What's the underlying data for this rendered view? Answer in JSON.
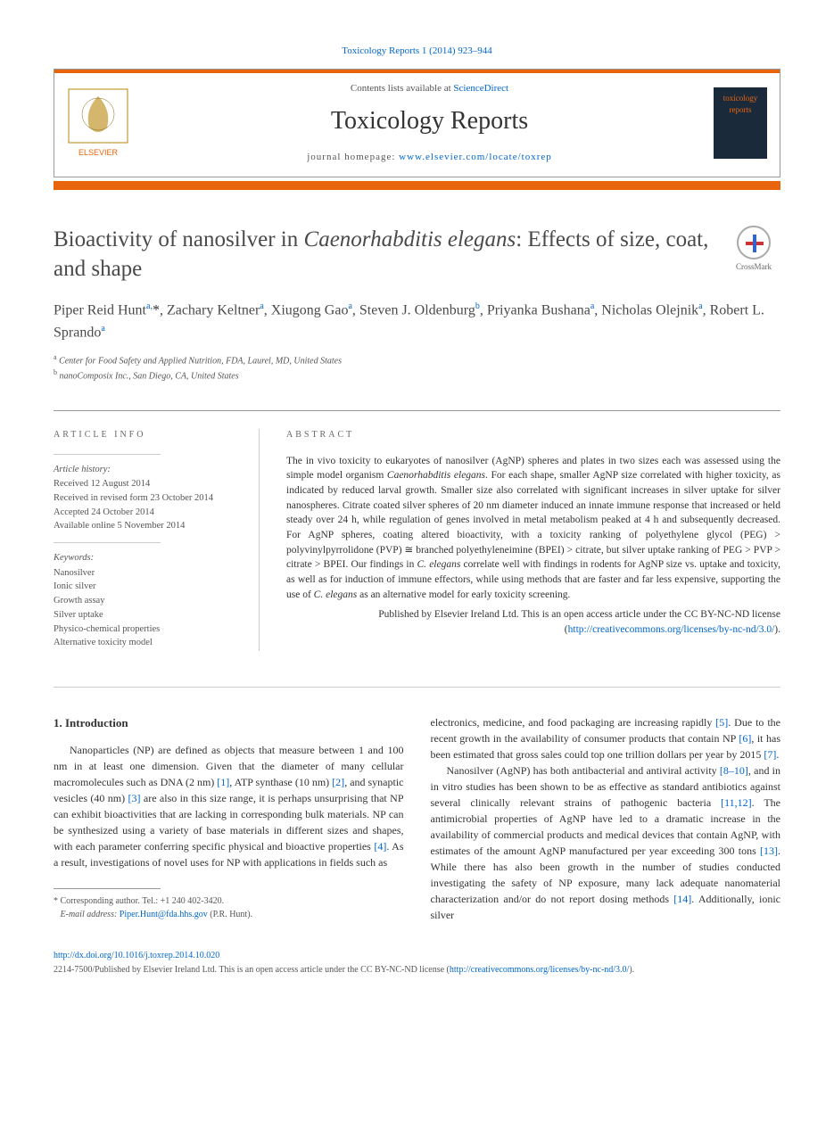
{
  "top_link": "Toxicology Reports 1 (2014) 923–944",
  "header": {
    "contents_prefix": "Contents lists available at ",
    "contents_link": "ScienceDirect",
    "journal": "Toxicology Reports",
    "homepage_prefix": "journal homepage: ",
    "homepage_link": "www.elsevier.com/locate/toxrep",
    "cover_text": "toxicology reports",
    "elsevier_label": "ELSEVIER"
  },
  "crossmark": "CrossMark",
  "title_pre": "Bioactivity of nanosilver in ",
  "title_italic": "Caenorhabditis elegans",
  "title_post": ": Effects of size, coat, and shape",
  "authors_html": "Piper Reid Hunt<sup>a,</sup><span class='star'>*</span>, Zachary Keltner<sup>a</sup>, Xiugong Gao<sup>a</sup>, Steven J. Oldenburg<sup>b</sup>, Priyanka Bushana<sup>a</sup>, Nicholas Olejnik<sup>a</sup>, Robert L. Sprando<sup>a</sup>",
  "affiliations": {
    "a": "Center for Food Safety and Applied Nutrition, FDA, Laurel, MD, United States",
    "b": "nanoComposix Inc., San Diego, CA, United States"
  },
  "info": {
    "label": "article info",
    "history_label": "Article history:",
    "received": "Received 12 August 2014",
    "revised": "Received in revised form 23 October 2014",
    "accepted": "Accepted 24 October 2014",
    "online": "Available online 5 November 2014",
    "keywords_label": "Keywords:",
    "keywords": [
      "Nanosilver",
      "Ionic silver",
      "Growth assay",
      "Silver uptake",
      "Physico-chemical properties",
      "Alternative toxicity model"
    ]
  },
  "abstract": {
    "label": "abstract",
    "text_parts": [
      "The in vivo toxicity to eukaryotes of nanosilver (AgNP) spheres and plates in two sizes each was assessed using the simple model organism ",
      "Caenorhabditis elegans",
      ". For each shape, smaller AgNP size correlated with higher toxicity, as indicated by reduced larval growth. Smaller size also correlated with significant increases in silver uptake for silver nanospheres. Citrate coated silver spheres of 20 nm diameter induced an innate immune response that increased or held steady over 24 h, while regulation of genes involved in metal metabolism peaked at 4 h and subsequently decreased. For AgNP spheres, coating altered bioactivity, with a toxicity ranking of polyethylene glycol (PEG) > polyvinylpyrrolidone (PVP) ≅ branched polyethyleneimine (BPEI) > citrate, but silver uptake ranking of PEG > PVP > citrate > BPEI. Our findings in ",
      "C. elegans",
      " correlate well with findings in rodents for AgNP size vs. uptake and toxicity, as well as for induction of immune effectors, while using methods that are faster and far less expensive, supporting the use of ",
      "C. elegans",
      " as an alternative model for early toxicity screening."
    ],
    "license_pre": "Published by Elsevier Ireland Ltd. This is an open access article under the CC BY-NC-ND license (",
    "license_link": "http://creativecommons.org/licenses/by-nc-nd/3.0/",
    "license_post": ")."
  },
  "section1": {
    "heading": "1. Introduction",
    "para1_parts": [
      "Nanoparticles (NP) are defined as objects that measure between 1 and 100 nm in at least one dimension. Given that the diameter of many cellular macromolecules such as DNA (2 nm) ",
      "[1]",
      ", ATP synthase (10 nm) ",
      "[2]",
      ", and synaptic vesicles (40 nm) ",
      "[3]",
      " are also in this size range, it is perhaps unsurprising that NP can exhibit bioactivities that are lacking in corresponding bulk materials. NP can be synthesized using a variety of base materials in different sizes and shapes, with each parameter conferring specific physical and bioactive properties ",
      "[4]",
      ". As a result, investigations of novel uses for NP with applications in fields such as"
    ],
    "para1b_parts": [
      "electronics, medicine, and food packaging are increasing rapidly ",
      "[5]",
      ". Due to the recent growth in the availability of consumer products that contain NP ",
      "[6]",
      ", it has been estimated that gross sales could top one trillion dollars per year by 2015 ",
      "[7]",
      "."
    ],
    "para2_parts": [
      "Nanosilver (AgNP) has both antibacterial and antiviral activity ",
      "[8–10]",
      ", and in in vitro studies has been shown to be as effective as standard antibiotics against several clinically relevant strains of pathogenic bacteria ",
      "[11,12]",
      ". The antimicrobial properties of AgNP have led to a dramatic increase in the availability of commercial products and medical devices that contain AgNP, with estimates of the amount AgNP manufactured per year exceeding 300 tons ",
      "[13]",
      ". While there has also been growth in the number of studies conducted investigating the safety of NP exposure, many lack adequate nanomaterial characterization and/or do not report dosing methods ",
      "[14]",
      ". Additionally, ionic silver"
    ]
  },
  "footnote": {
    "corr": "Corresponding author. Tel.: +1 240 402-3420.",
    "email_label": "E-mail address: ",
    "email": "Piper.Hunt@fda.hhs.gov",
    "email_post": " (P.R. Hunt)."
  },
  "doi": "http://dx.doi.org/10.1016/j.toxrep.2014.10.020",
  "copyright_pre": "2214-7500/Published by Elsevier Ireland Ltd. This is an open access article under the CC BY-NC-ND license (",
  "copyright_link": "http://creativecommons.org/licenses/by-nc-nd/3.0/",
  "copyright_post": ").",
  "colors": {
    "orange": "#e8650d",
    "link": "#0066cc",
    "text": "#333333",
    "muted": "#555555",
    "border": "#999999",
    "cover_bg": "#1a2a3a"
  },
  "typography": {
    "body_pt": 12,
    "title_pt": 25,
    "journal_pt": 28,
    "authors_pt": 16,
    "abstract_pt": 11.5,
    "info_pt": 10.5,
    "footnote_pt": 10
  }
}
